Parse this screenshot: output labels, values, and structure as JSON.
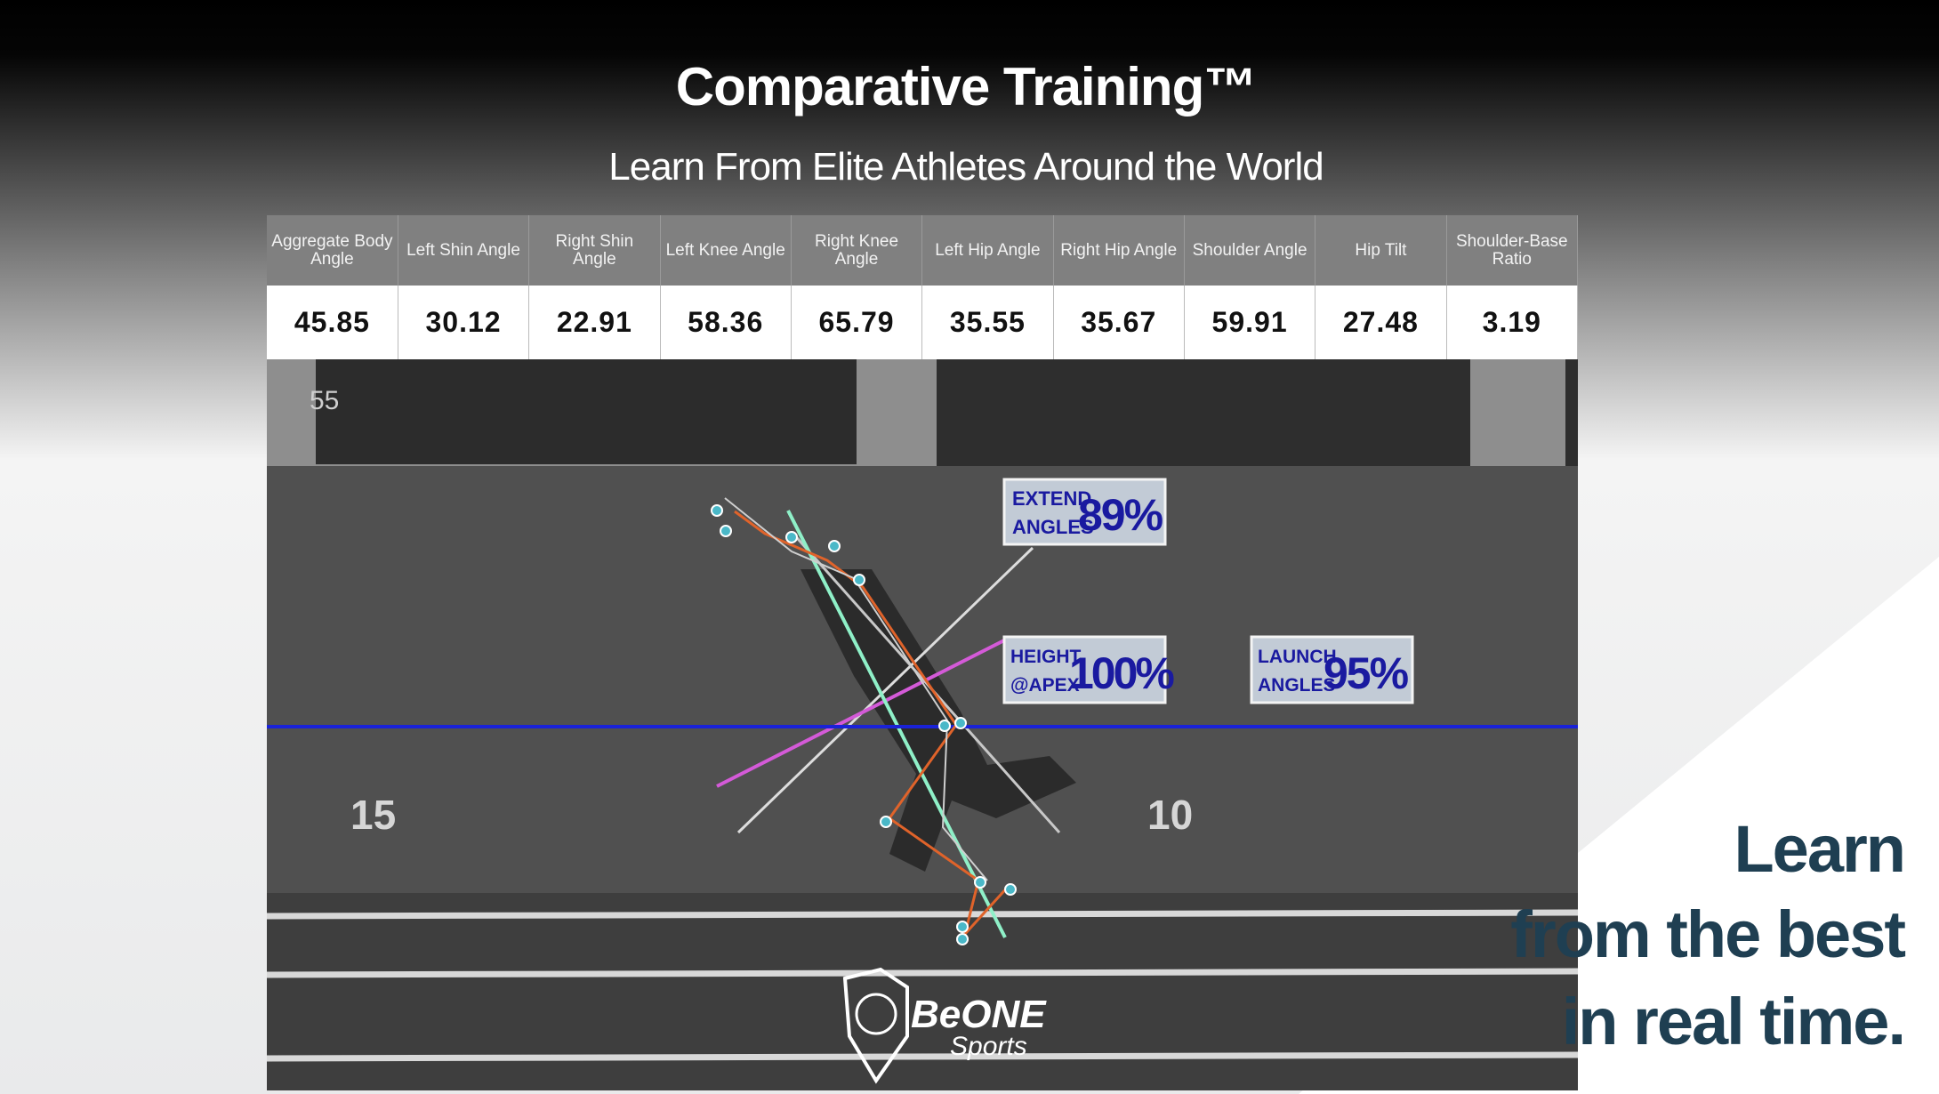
{
  "header": {
    "title": "Comparative Training™",
    "subtitle": "Learn From Elite Athletes Around the World"
  },
  "table": {
    "headers": [
      "Aggregate Body Angle",
      "Left Shin Angle",
      "Right Shin Angle",
      "Left Knee Angle",
      "Right Knee Angle",
      "Left Hip Angle",
      "Right Hip Angle",
      "Shoulder Angle",
      "Hip Tilt",
      "Shoulder-Base Ratio"
    ],
    "values": [
      45.85,
      30.12,
      22.91,
      58.36,
      65.79,
      35.55,
      35.67,
      59.91,
      27.48,
      3.19
    ]
  },
  "overlays": [
    {
      "label_lines": [
        "EXTEND",
        "ANGLES"
      ],
      "value": "89%"
    },
    {
      "label_lines": [
        "HEIGHT",
        "@APEX"
      ],
      "value": "100%"
    },
    {
      "label_lines": [
        "LAUNCH",
        "ANGLES"
      ],
      "value": "95%"
    }
  ],
  "video": {
    "field_numbers": [
      "55",
      "15",
      "10"
    ],
    "logo": {
      "name": "BeONE",
      "sub": "Sports"
    }
  },
  "tagline": [
    "Learn",
    "from the best",
    "in real time."
  ]
}
